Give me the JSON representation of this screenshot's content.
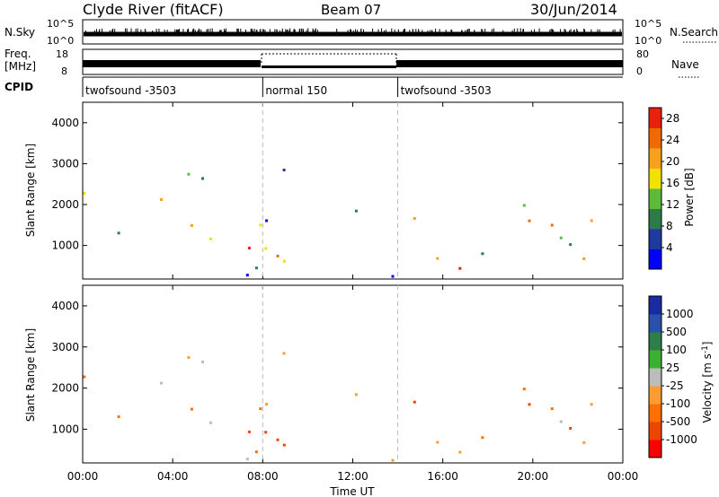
{
  "header": {
    "station": "Clyde River (fitACF)",
    "beam": "Beam 07",
    "date": "30/Jun/2014"
  },
  "sky_panel": {
    "left_label": "N.Sky",
    "right_label": "N.Search",
    "left_ticks": [
      "10^5",
      "10^0"
    ],
    "right_ticks": [
      "10^5",
      "10^0"
    ]
  },
  "freq_panel": {
    "left_label_1": "Freq.",
    "left_label_2": "[MHz]",
    "right_label": "Nave",
    "left_ticks": [
      "18",
      "8"
    ],
    "right_ticks": [
      "80",
      "0"
    ],
    "cpid_label": "CPID",
    "cpid_segments": [
      {
        "label": "twofsound -3503",
        "start_h": 0,
        "end_h": 8
      },
      {
        "label": "normal 150",
        "start_h": 8,
        "end_h": 14
      },
      {
        "label": "twofsound -3503",
        "start_h": 14,
        "end_h": 24
      }
    ]
  },
  "colors": {
    "power_scale": [
      "#0000ff",
      "#1e3a9e",
      "#2e7b4a",
      "#5dbb3a",
      "#f2e200",
      "#f7a21a",
      "#f06a00",
      "#ea1f0c"
    ],
    "velocity_scale": [
      "#ff0000",
      "#ee4400",
      "#ff7000",
      "#ff9c30",
      "#bcbcbc",
      "#3cb030",
      "#2e7d4a",
      "#2a52a8",
      "#1a2aa0"
    ]
  },
  "chart_data": [
    {
      "type": "heatmap",
      "panel": "power",
      "ylabel": "Slant Range [km]",
      "y_ticks": [
        1000,
        2000,
        3000,
        4000
      ],
      "ylim": [
        180,
        4500
      ],
      "colorbar_label": "Power [dB]",
      "colorbar_ticks": [
        "4",
        "8",
        "12",
        "16",
        "20",
        "24",
        "28"
      ],
      "colorbar_range": [
        0,
        30
      ]
    },
    {
      "type": "heatmap",
      "panel": "velocity",
      "ylabel": "Slant Range [km]",
      "y_ticks": [
        1000,
        2000,
        3000,
        4000
      ],
      "ylim": [
        180,
        4500
      ],
      "colorbar_label": "Velocity [m s^-1]",
      "colorbar_ticks": [
        "1000",
        "500",
        "100",
        "25",
        "-25",
        "-100",
        "-500",
        "-1000"
      ]
    }
  ],
  "x_axis": {
    "label": "Time UT",
    "tick_labels": [
      "00:00",
      "04:00",
      "08:00",
      "12:00",
      "16:00",
      "20:00",
      "00:00"
    ],
    "range_h": [
      0,
      24
    ]
  }
}
